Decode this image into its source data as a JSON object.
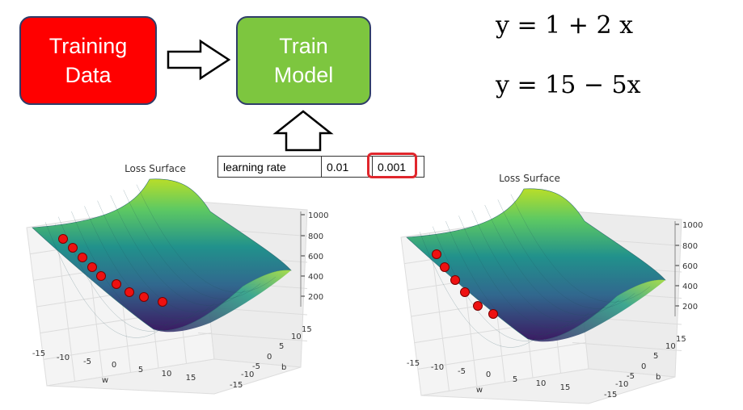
{
  "flow": {
    "training_data_label": "Training\nData",
    "train_model_label": "Train\nModel"
  },
  "equations": {
    "eq1": "y = 1 + 2 x",
    "eq2": "y = 15 − 5x"
  },
  "learning_rate_table": {
    "label": "learning rate",
    "values": [
      "0.01",
      "0.001"
    ],
    "selected": "0.001"
  },
  "colors": {
    "training_box": "#ff0000",
    "train_box": "#7dc63f",
    "box_border": "#2f3d69",
    "highlight": "#e0262c",
    "step_marker": "#ee1111"
  },
  "plots": [
    {
      "title": "Loss Surface",
      "w_ticks": [
        "-15",
        "-10",
        "-5",
        "0",
        "5",
        "10",
        "15"
      ],
      "b_ticks": [
        "-15",
        "-10",
        "-5",
        "0",
        "5",
        "10",
        "15"
      ],
      "z_ticks": [
        "200",
        "400",
        "600",
        "800",
        "1000"
      ],
      "w_label": "w",
      "b_label": "b",
      "step_count": 10
    },
    {
      "title": "Loss Surface",
      "w_ticks": [
        "-15",
        "-10",
        "-5",
        "0",
        "5",
        "10",
        "15"
      ],
      "b_ticks": [
        "-15",
        "-10",
        "-5",
        "0",
        "5",
        "10",
        "15"
      ],
      "z_ticks": [
        "200",
        "400",
        "600",
        "800",
        "1000"
      ],
      "w_label": "w",
      "b_label": "b",
      "step_count": 7
    }
  ]
}
